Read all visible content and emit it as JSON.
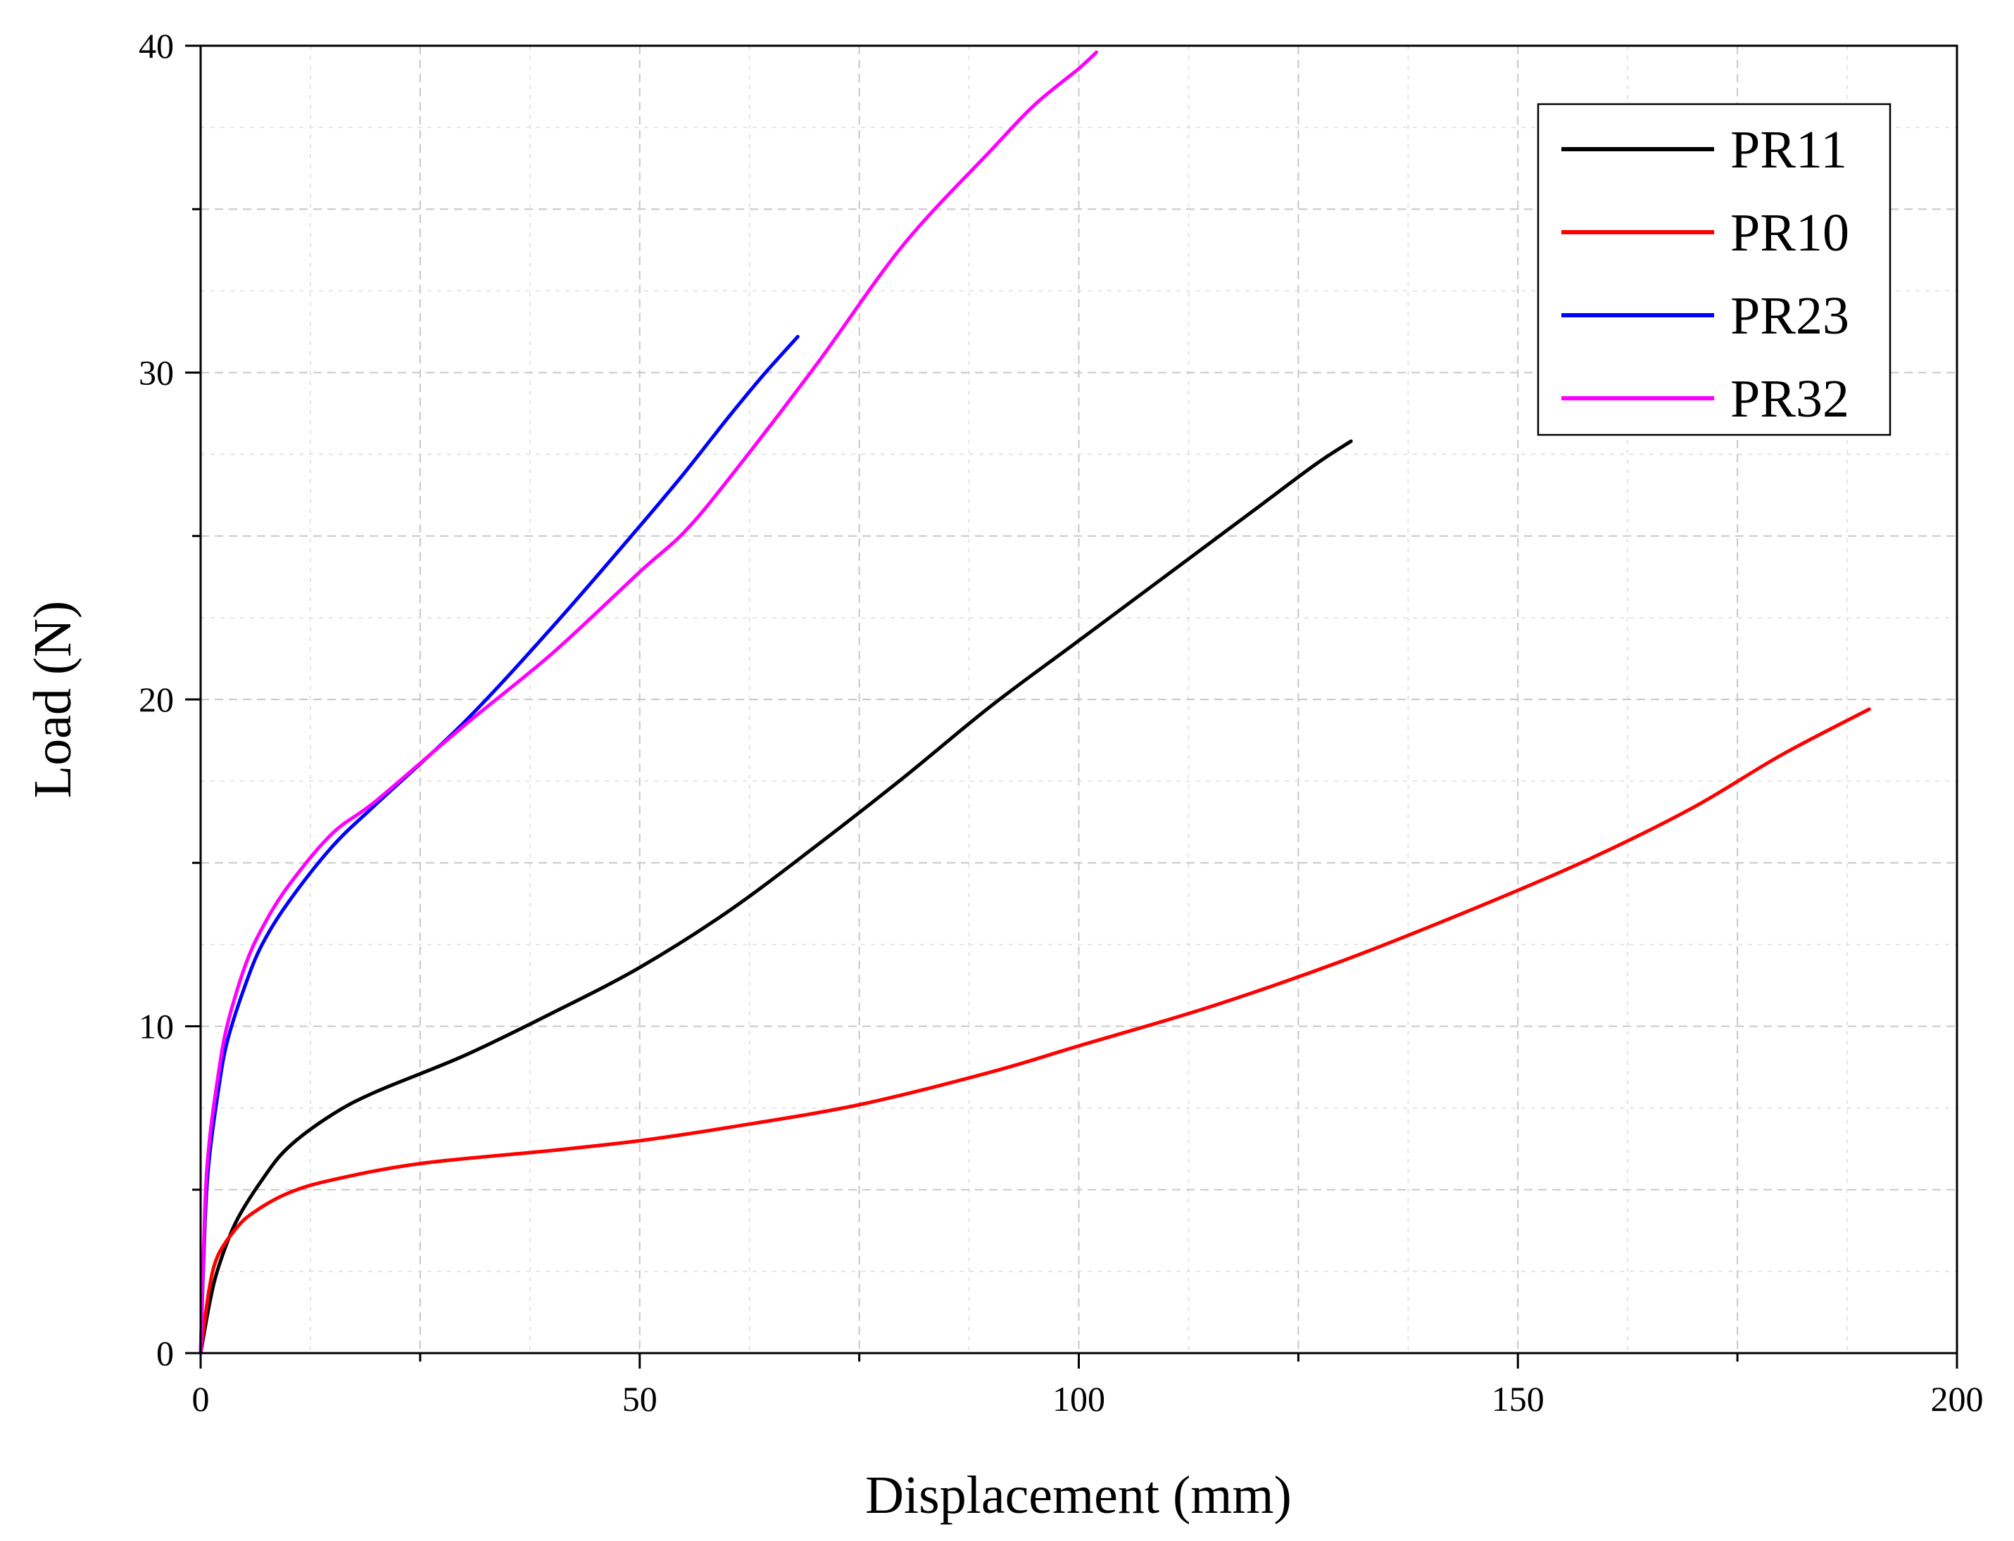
{
  "chart_data": {
    "type": "line",
    "title": "",
    "xlabel": "Displacement (mm)",
    "ylabel": "Load (N)",
    "xlim": [
      0,
      200
    ],
    "ylim": [
      0,
      40
    ],
    "xticks": [
      "0",
      "50",
      "100",
      "150",
      "200"
    ],
    "yticks": [
      "0",
      "10",
      "20",
      "30",
      "40"
    ],
    "grid": true,
    "legend_position": "top-right",
    "series": [
      {
        "name": "PR11",
        "color": "#000000",
        "x": [
          0,
          1,
          2,
          4,
          7,
          10,
          15,
          20,
          30,
          40,
          50,
          60,
          70,
          80,
          90,
          100,
          110,
          120,
          127,
          131
        ],
        "y": [
          0,
          1.5,
          2.6,
          4.0,
          5.3,
          6.3,
          7.3,
          8.0,
          9.1,
          10.4,
          11.8,
          13.5,
          15.5,
          17.6,
          19.8,
          21.8,
          23.8,
          25.8,
          27.2,
          27.9
        ]
      },
      {
        "name": "PR10",
        "color": "#ff0000",
        "x": [
          0,
          1,
          2,
          4,
          6,
          10,
          15,
          25,
          40,
          50,
          60,
          75,
          90,
          100,
          115,
          130,
          145,
          158,
          170,
          180,
          190
        ],
        "y": [
          0,
          2.0,
          3.0,
          3.8,
          4.3,
          4.9,
          5.3,
          5.8,
          6.2,
          6.5,
          6.9,
          7.6,
          8.6,
          9.4,
          10.6,
          12.0,
          13.6,
          15.1,
          16.7,
          18.3,
          19.7
        ]
      },
      {
        "name": "PR23",
        "color": "#0000ff",
        "x": [
          0,
          0.5,
          1,
          2,
          3,
          5,
          7,
          10,
          15,
          20,
          30,
          40,
          50,
          55,
          60,
          64,
          68
        ],
        "y": [
          0,
          4.0,
          6.0,
          8.0,
          9.5,
          11.2,
          12.5,
          13.8,
          15.5,
          16.8,
          19.3,
          22.2,
          25.3,
          26.9,
          28.6,
          29.9,
          31.1
        ]
      },
      {
        "name": "PR32",
        "color": "#ff00ff",
        "x": [
          0,
          0.5,
          1,
          2,
          3,
          5,
          7,
          10,
          15,
          20,
          30,
          40,
          50,
          55,
          60,
          70,
          80,
          90,
          95,
          100,
          102
        ],
        "y": [
          0,
          4.5,
          6.5,
          8.5,
          10.0,
          11.8,
          13.0,
          14.3,
          15.9,
          16.9,
          19.2,
          21.4,
          23.9,
          25.1,
          26.7,
          30.2,
          33.9,
          36.8,
          38.2,
          39.3,
          39.8
        ]
      }
    ]
  }
}
